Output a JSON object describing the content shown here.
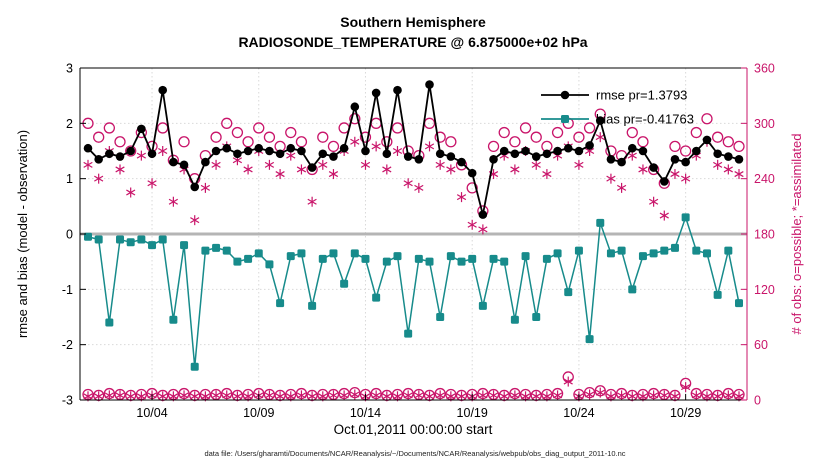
{
  "title": {
    "line1": "Southern Hemisphere",
    "line2": "RADIOSONDE_TEMPERATURE @ 6.875000e+02 hPa"
  },
  "axes": {
    "left_label": "rmse and bias (model - observation)",
    "right_label": "# of obs: o=possible; *=assimilated",
    "x_label": "Oct.01,2011 00:00:00 start",
    "left_ticks": [
      -3,
      -2,
      -1,
      0,
      1,
      2,
      3
    ],
    "right_ticks": [
      0,
      60,
      120,
      180,
      240,
      300,
      360
    ],
    "x_tick_labels": [
      "10/04",
      "10/09",
      "10/14",
      "10/19",
      "10/24",
      "10/29"
    ],
    "x_tick_positions": [
      6,
      16,
      26,
      36,
      46,
      56
    ]
  },
  "legend": [
    {
      "label": "rmse pr=1.3793",
      "marker": "filled-circle",
      "color": "#000000"
    },
    {
      "label": "bias pr=-0.41763",
      "marker": "filled-square",
      "color": "#178b8b"
    }
  ],
  "colors": {
    "rmse": "#000000",
    "bias": "#178b8b",
    "obs": "#c9156a",
    "zero_line": "#b5b5b5",
    "grid": "#d9d9d9"
  },
  "footer": "data file: /Users/gharamti/Documents/NCAR/Reanalysis/~/Documents/NCAR/Reanalysis/webpub/obs_diag_output_2011-10.nc",
  "chart_data": {
    "type": "line",
    "title": "Southern Hemisphere — RADIOSONDE_TEMPERATURE @ 6.875000e+02 hPa",
    "xlabel": "Oct.01,2011 00:00:00 start",
    "ylabel_left": "rmse and bias (model - observation)",
    "ylabel_right": "# of obs: o=possible; *=assimilated",
    "left_range": [
      -3,
      3
    ],
    "right_range": [
      0,
      360
    ],
    "grid": true,
    "legend_position": "top-right",
    "n_points": 62,
    "series": [
      {
        "name": "num_obs_possible",
        "axis": "right",
        "marker": "open-circle",
        "color": "#c9156a",
        "line": false,
        "values": [
          300,
          285,
          295,
          280,
          270,
          290,
          275,
          295,
          260,
          280,
          240,
          265,
          285,
          300,
          290,
          280,
          295,
          285,
          275,
          290,
          280,
          250,
          285,
          275,
          295,
          305,
          285,
          300,
          280,
          295,
          270,
          265,
          300,
          285,
          280,
          255,
          230,
          205,
          275,
          290,
          280,
          295,
          285,
          275,
          290,
          300,
          285,
          295,
          310,
          270,
          265,
          290,
          280,
          250,
          235,
          275,
          270,
          290,
          305,
          285,
          280,
          275
        ]
      },
      {
        "name": "num_obs_assimilated",
        "axis": "right",
        "marker": "asterisk",
        "color": "#c9156a",
        "line": false,
        "values": [
          255,
          240,
          270,
          250,
          225,
          265,
          235,
          270,
          215,
          250,
          195,
          230,
          255,
          275,
          260,
          250,
          270,
          255,
          245,
          265,
          250,
          215,
          255,
          245,
          270,
          280,
          255,
          275,
          250,
          270,
          235,
          230,
          275,
          255,
          250,
          220,
          190,
          185,
          245,
          265,
          250,
          270,
          255,
          245,
          265,
          275,
          255,
          270,
          285,
          240,
          230,
          265,
          250,
          215,
          200,
          245,
          240,
          265,
          280,
          255,
          250,
          245
        ]
      },
      {
        "name": "num_obs_possible_bottom_row",
        "axis": "right",
        "marker": "open-circle",
        "color": "#c9156a",
        "line": false,
        "values": [
          6,
          5,
          7,
          6,
          5,
          6,
          7,
          5,
          6,
          7,
          5,
          6,
          6,
          7,
          5,
          6,
          7,
          6,
          5,
          6,
          7,
          5,
          6,
          6,
          7,
          8,
          6,
          7,
          5,
          6,
          7,
          6,
          5,
          7,
          6,
          5,
          6,
          7,
          6,
          5,
          7,
          6,
          5,
          6,
          7,
          25,
          6,
          8,
          10,
          6,
          7,
          5,
          6,
          7,
          6,
          5,
          18,
          7,
          6,
          5,
          7,
          6
        ]
      },
      {
        "name": "num_obs_assimilated_bottom_row",
        "axis": "right",
        "marker": "asterisk",
        "color": "#c9156a",
        "line": false,
        "values": [
          4,
          4,
          5,
          5,
          4,
          4,
          5,
          4,
          4,
          5,
          4,
          4,
          5,
          5,
          4,
          4,
          5,
          5,
          4,
          4,
          5,
          4,
          4,
          5,
          5,
          6,
          4,
          5,
          4,
          4,
          5,
          5,
          4,
          5,
          4,
          4,
          4,
          5,
          5,
          4,
          5,
          4,
          4,
          4,
          5,
          20,
          4,
          6,
          8,
          4,
          5,
          4,
          4,
          5,
          5,
          4,
          14,
          5,
          4,
          4,
          5,
          4
        ]
      },
      {
        "name": "bias",
        "axis": "left",
        "marker": "filled-square",
        "color": "#178b8b",
        "line": true,
        "values": [
          -0.05,
          -0.1,
          -1.6,
          -0.1,
          -0.15,
          -0.1,
          -0.2,
          -0.1,
          -1.55,
          -0.2,
          -2.4,
          -0.3,
          -0.25,
          -0.3,
          -0.5,
          -0.45,
          -0.35,
          -0.55,
          -1.25,
          -0.4,
          -0.35,
          -1.3,
          -0.45,
          -0.35,
          -0.9,
          -0.35,
          -0.45,
          -1.15,
          -0.5,
          -0.4,
          -1.8,
          -0.45,
          -0.5,
          -1.5,
          -0.4,
          -0.5,
          -0.45,
          -1.3,
          -0.45,
          -0.5,
          -1.55,
          -0.4,
          -1.5,
          -0.45,
          -0.35,
          -1.05,
          -0.3,
          -1.9,
          0.2,
          -0.35,
          -0.3,
          -1.0,
          -0.4,
          -0.35,
          -0.3,
          -0.25,
          0.3,
          -0.3,
          -0.35,
          -1.1,
          -0.3,
          -1.25
        ]
      },
      {
        "name": "rmse",
        "axis": "left",
        "marker": "filled-circle",
        "color": "#000000",
        "line": true,
        "values": [
          1.55,
          1.35,
          1.45,
          1.4,
          1.5,
          1.9,
          1.45,
          2.6,
          1.3,
          1.25,
          0.85,
          1.3,
          1.5,
          1.55,
          1.45,
          1.5,
          1.55,
          1.5,
          1.45,
          1.55,
          1.5,
          1.2,
          1.45,
          1.4,
          1.55,
          2.3,
          1.5,
          2.55,
          1.45,
          2.6,
          1.4,
          1.35,
          2.7,
          1.45,
          1.4,
          1.3,
          1.1,
          0.35,
          1.35,
          1.5,
          1.45,
          1.5,
          1.4,
          1.45,
          1.5,
          1.55,
          1.5,
          1.6,
          2.05,
          1.35,
          1.3,
          1.55,
          1.5,
          1.2,
          0.95,
          1.35,
          1.3,
          1.5,
          1.7,
          1.45,
          1.4,
          1.35
        ]
      }
    ]
  }
}
